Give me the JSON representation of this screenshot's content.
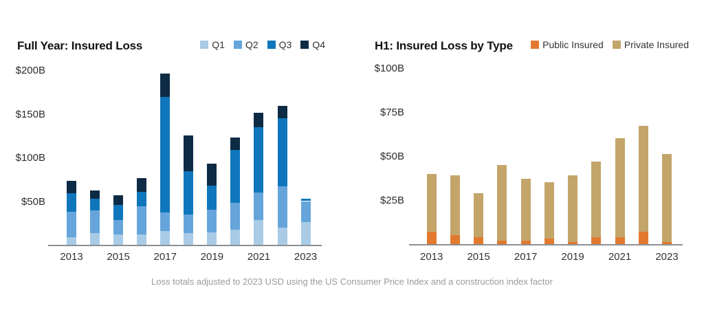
{
  "caption": "Loss totals adjusted to 2023 USD using the US Consumer Price Index and a construction index factor",
  "chart_data": [
    {
      "type": "bar",
      "stacked": true,
      "title": "Full Year: Insured Loss",
      "categories": [
        "2013",
        "2014",
        "2015",
        "2016",
        "2017",
        "2018",
        "2019",
        "2020",
        "2021",
        "2022",
        "2023"
      ],
      "x_tick_labels": [
        "2013",
        "2015",
        "2017",
        "2019",
        "2021",
        "2023"
      ],
      "y_ticks": [
        200,
        150,
        100,
        50
      ],
      "y_tick_labels": [
        "$200B",
        "$150B",
        "$100B",
        "$50B"
      ],
      "ylim": [
        0,
        200
      ],
      "grid": false,
      "legend_position": "top-right",
      "series": [
        {
          "name": "Q1",
          "color": "#A9CBE6",
          "values": [
            9,
            13,
            12,
            12,
            16,
            13,
            14,
            17,
            28,
            20,
            26
          ]
        },
        {
          "name": "Q2",
          "color": "#66A5DB",
          "values": [
            29,
            26,
            16,
            32,
            21,
            22,
            26,
            31,
            32,
            47,
            24
          ]
        },
        {
          "name": "Q3",
          "color": "#0F76BC",
          "values": [
            21,
            14,
            18,
            17,
            132,
            49,
            28,
            61,
            75,
            78,
            3
          ]
        },
        {
          "name": "Q4",
          "color": "#0E2B45",
          "values": [
            14,
            9,
            11,
            15,
            27,
            41,
            25,
            14,
            16,
            14,
            0
          ]
        }
      ]
    },
    {
      "type": "bar",
      "stacked": true,
      "title": "H1: Insured Loss by Type",
      "categories": [
        "2013",
        "2014",
        "2015",
        "2016",
        "2017",
        "2018",
        "2019",
        "2020",
        "2021",
        "2022",
        "2023"
      ],
      "x_tick_labels": [
        "2013",
        "2015",
        "2017",
        "2019",
        "2021",
        "2023"
      ],
      "y_ticks": [
        100,
        75,
        50,
        25
      ],
      "y_tick_labels": [
        "$100B",
        "$75B",
        "$50B",
        "$25B"
      ],
      "ylim": [
        0,
        100
      ],
      "grid": false,
      "legend_position": "top-right",
      "series": [
        {
          "name": "Public Insured",
          "color": "#E3792F",
          "values": [
            7,
            5,
            4,
            2,
            2,
            3,
            1,
            4,
            4,
            7,
            1
          ]
        },
        {
          "name": "Private Insured",
          "color": "#C3A56A",
          "values": [
            33,
            34,
            25,
            43,
            35,
            32,
            38,
            43,
            56,
            60,
            50
          ]
        }
      ]
    }
  ]
}
